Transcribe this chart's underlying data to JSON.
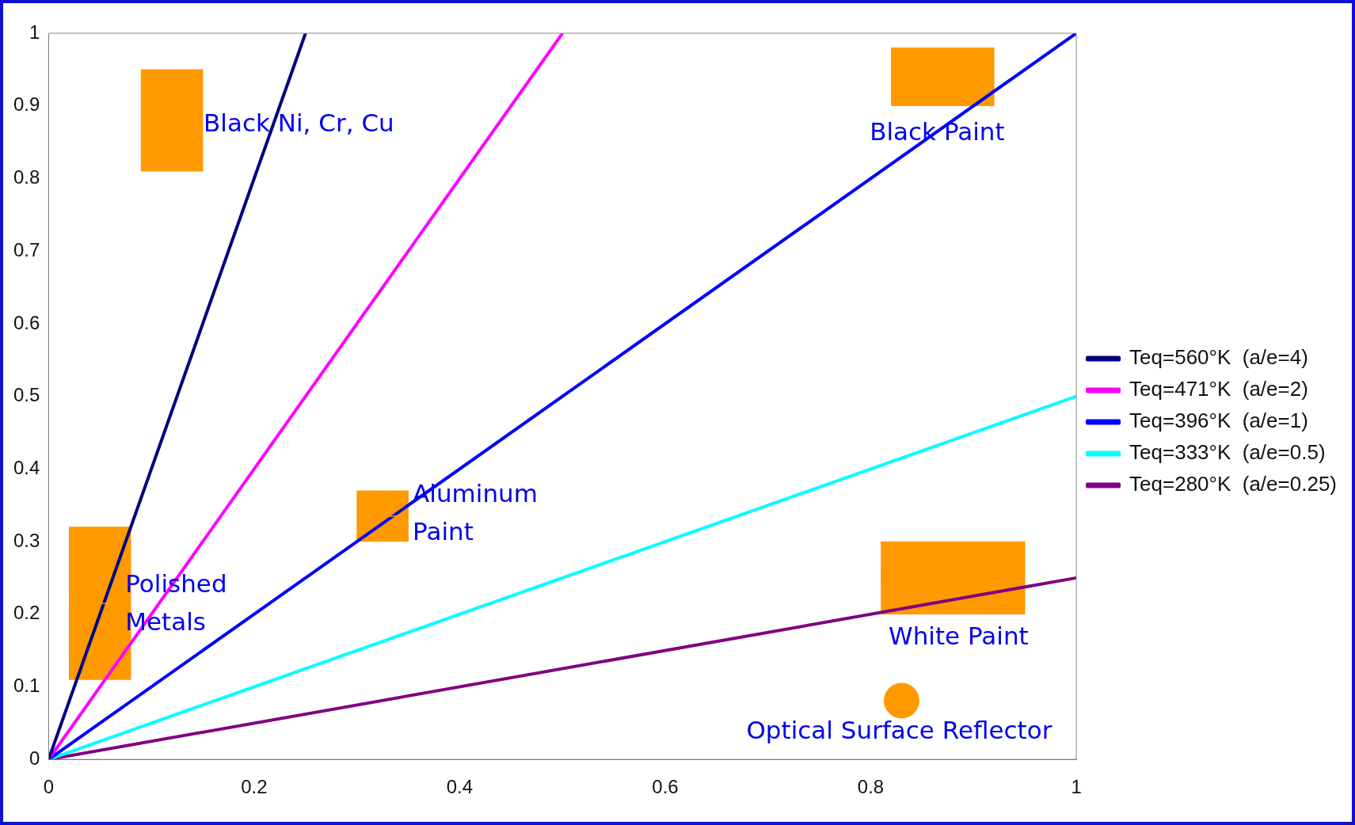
{
  "chart_data": {
    "type": "line",
    "xlim": [
      0,
      1
    ],
    "ylim": [
      0,
      1
    ],
    "xticks": [
      0,
      0.2,
      0.4,
      0.6,
      0.8,
      1
    ],
    "yticks": [
      0,
      0.1,
      0.2,
      0.3,
      0.4,
      0.5,
      0.6,
      0.7,
      0.8,
      0.9,
      1
    ],
    "grid": false,
    "legend": "right",
    "line_style": "solid",
    "marker": "none",
    "series": [
      {
        "name": "Teq=560°K  (a/e=4)",
        "color": "#000080",
        "x": [
          0,
          0.25
        ],
        "values": [
          0,
          1
        ]
      },
      {
        "name": "Teq=471°K  (a/e=2)",
        "color": "#ff00ff",
        "x": [
          0,
          0.5
        ],
        "values": [
          0,
          1
        ]
      },
      {
        "name": "Teq=396°K  (a/e=1)",
        "color": "#0000ff",
        "x": [
          0,
          1
        ],
        "values": [
          0,
          1
        ]
      },
      {
        "name": "Teq=333°K  (a/e=0.5)",
        "color": "#00ffff",
        "x": [
          0,
          1
        ],
        "values": [
          0,
          0.5
        ]
      },
      {
        "name": "Teq=280°K  (a/e=0.25)",
        "color": "#800080",
        "x": [
          0,
          1
        ],
        "values": [
          0,
          0.25
        ]
      },
      {
        "type": "bar",
        "color": "#ff9900",
        "x": [
          0.05
        ],
        "base": [
          0.11
        ],
        "values": [
          0.21
        ],
        "xerrors": [
          [
            0.02,
            0.08
          ]
        ]
      },
      {
        "type": "bar",
        "color": "#ff9900",
        "x": [
          0.12
        ],
        "base": [
          0.81
        ],
        "values": [
          0.14
        ],
        "xerrors": [
          [
            0.09,
            0.15
          ]
        ]
      },
      {
        "type": "bar",
        "color": "#ff9900",
        "x": [
          0.325
        ],
        "base": [
          0.3
        ],
        "values": [
          0.07
        ],
        "xerrors": [
          [
            0.3,
            0.35
          ]
        ]
      },
      {
        "type": "bar",
        "color": "#ff9900",
        "x": [
          0.87
        ],
        "base": [
          0.9
        ],
        "values": [
          0.08
        ],
        "xerrors": [
          [
            0.82,
            0.92
          ]
        ]
      },
      {
        "type": "bar",
        "color": "#ff9900",
        "x": [
          0.88
        ],
        "base": [
          0.2
        ],
        "values": [
          0.1
        ],
        "xerrors": [
          [
            0.81,
            0.95
          ]
        ]
      },
      {
        "type": "scatter",
        "marker": "circle",
        "color": "#ff9900",
        "x": [
          0.83
        ],
        "values": [
          0.081
        ]
      }
    ],
    "annotations": [
      "Polished\nMetals",
      "Black Ni, Cr, Cu",
      "Aluminum\nPaint",
      "Black Paint",
      "White Paint",
      "Optical Surface Reflector"
    ]
  }
}
